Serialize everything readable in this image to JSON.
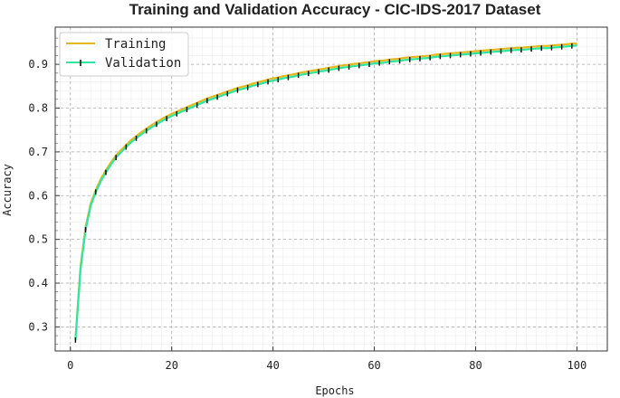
{
  "chart_data": {
    "type": "line",
    "title": "Training and Validation Accuracy - CIC-IDS-2017 Dataset",
    "xlabel": "Epochs",
    "ylabel": "Accuracy",
    "xlim": [
      -3,
      106
    ],
    "ylim": [
      0.245,
      0.985
    ],
    "xticks": [
      0,
      20,
      40,
      60,
      80,
      100
    ],
    "yticks": [
      0.3,
      0.4,
      0.5,
      0.6,
      0.7,
      0.8,
      0.9
    ],
    "grid": true,
    "legend_position": "top-left",
    "x": [
      1,
      2,
      3,
      4,
      5,
      6,
      7,
      8,
      9,
      10,
      11,
      12,
      13,
      14,
      15,
      16,
      17,
      18,
      19,
      20,
      21,
      22,
      23,
      24,
      25,
      26,
      27,
      28,
      29,
      30,
      31,
      32,
      33,
      34,
      35,
      36,
      37,
      38,
      39,
      40,
      41,
      42,
      43,
      44,
      45,
      46,
      47,
      48,
      49,
      50,
      51,
      52,
      53,
      54,
      55,
      56,
      57,
      58,
      59,
      60,
      61,
      62,
      63,
      64,
      65,
      66,
      67,
      68,
      69,
      70,
      71,
      72,
      73,
      74,
      75,
      76,
      77,
      78,
      79,
      80,
      81,
      82,
      83,
      84,
      85,
      86,
      87,
      88,
      89,
      90,
      91,
      92,
      93,
      94,
      95,
      96,
      97,
      98,
      99,
      100
    ],
    "series": [
      {
        "name": "Training",
        "color": "#e6b820",
        "values": [
          0.272,
          0.438,
          0.528,
          0.582,
          0.613,
          0.638,
          0.658,
          0.676,
          0.692,
          0.704,
          0.716,
          0.727,
          0.736,
          0.745,
          0.753,
          0.761,
          0.768,
          0.775,
          0.781,
          0.787,
          0.792,
          0.797,
          0.802,
          0.807,
          0.812,
          0.817,
          0.822,
          0.826,
          0.83,
          0.834,
          0.838,
          0.842,
          0.846,
          0.849,
          0.852,
          0.856,
          0.859,
          0.862,
          0.865,
          0.868,
          0.87,
          0.873,
          0.875,
          0.877,
          0.88,
          0.882,
          0.884,
          0.886,
          0.888,
          0.89,
          0.892,
          0.894,
          0.896,
          0.898,
          0.899,
          0.901,
          0.902,
          0.904,
          0.905,
          0.907,
          0.908,
          0.909,
          0.911,
          0.912,
          0.913,
          0.915,
          0.916,
          0.917,
          0.918,
          0.919,
          0.92,
          0.922,
          0.923,
          0.924,
          0.925,
          0.926,
          0.927,
          0.928,
          0.929,
          0.93,
          0.931,
          0.932,
          0.933,
          0.934,
          0.935,
          0.936,
          0.937,
          0.938,
          0.938,
          0.939,
          0.94,
          0.941,
          0.942,
          0.942,
          0.943,
          0.944,
          0.945,
          0.946,
          0.947,
          0.948
        ]
      },
      {
        "name": "Validation",
        "color": "#2ee6a0",
        "values": [
          0.27,
          0.432,
          0.522,
          0.577,
          0.608,
          0.633,
          0.653,
          0.671,
          0.687,
          0.699,
          0.711,
          0.722,
          0.731,
          0.74,
          0.748,
          0.756,
          0.763,
          0.77,
          0.776,
          0.782,
          0.787,
          0.792,
          0.797,
          0.802,
          0.807,
          0.812,
          0.817,
          0.821,
          0.825,
          0.829,
          0.833,
          0.837,
          0.841,
          0.844,
          0.847,
          0.851,
          0.854,
          0.857,
          0.86,
          0.863,
          0.865,
          0.868,
          0.87,
          0.872,
          0.875,
          0.877,
          0.879,
          0.881,
          0.883,
          0.885,
          0.887,
          0.889,
          0.891,
          0.893,
          0.894,
          0.896,
          0.897,
          0.899,
          0.9,
          0.902,
          0.903,
          0.904,
          0.906,
          0.907,
          0.908,
          0.91,
          0.911,
          0.912,
          0.913,
          0.914,
          0.915,
          0.917,
          0.918,
          0.919,
          0.92,
          0.921,
          0.922,
          0.923,
          0.924,
          0.925,
          0.926,
          0.927,
          0.928,
          0.929,
          0.93,
          0.931,
          0.932,
          0.933,
          0.933,
          0.934,
          0.935,
          0.936,
          0.937,
          0.937,
          0.938,
          0.939,
          0.94,
          0.941,
          0.942,
          0.943
        ],
        "error": 0.006
      }
    ]
  }
}
